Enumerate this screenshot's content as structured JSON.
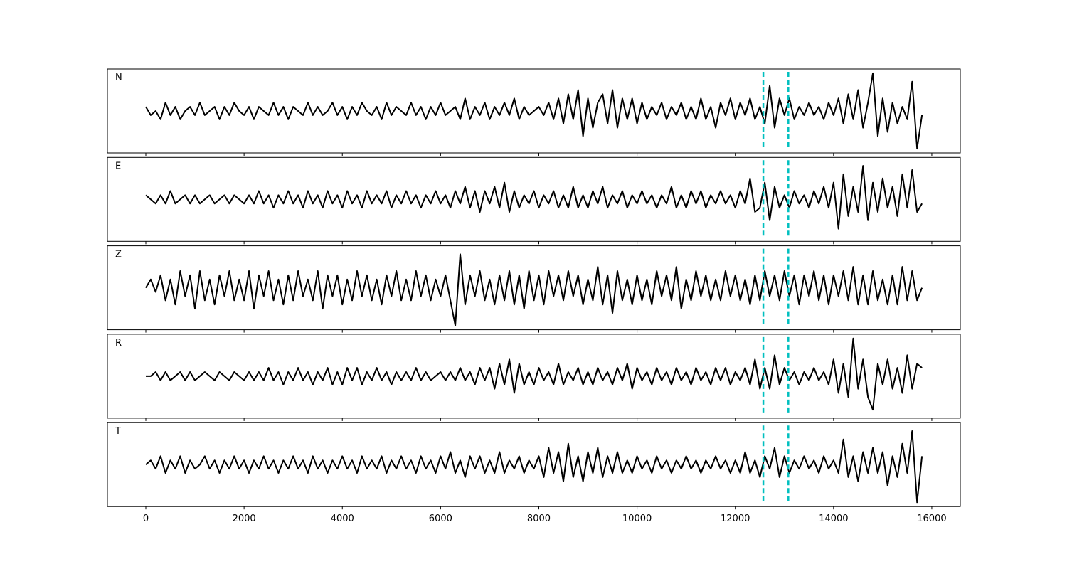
{
  "chart_data": {
    "type": "line",
    "xlim": [
      -782,
      16580
    ],
    "xticks": [
      0,
      2000,
      4000,
      6000,
      8000,
      10000,
      12000,
      14000,
      16000
    ],
    "ylim": [
      -10,
      10
    ],
    "vlines": [
      12570,
      13080
    ],
    "vline_color": "#00bfbf",
    "x": [
      0,
      100,
      200,
      300,
      400,
      500,
      600,
      700,
      800,
      900,
      1000,
      1100,
      1200,
      1300,
      1400,
      1500,
      1600,
      1700,
      1800,
      1900,
      2000,
      2100,
      2200,
      2300,
      2400,
      2500,
      2600,
      2700,
      2800,
      2900,
      3000,
      3100,
      3200,
      3300,
      3400,
      3500,
      3600,
      3700,
      3800,
      3900,
      4000,
      4100,
      4200,
      4300,
      4400,
      4500,
      4600,
      4700,
      4800,
      4900,
      5000,
      5100,
      5200,
      5300,
      5400,
      5500,
      5600,
      5700,
      5800,
      5900,
      6000,
      6100,
      6200,
      6300,
      6400,
      6500,
      6600,
      6700,
      6800,
      6900,
      7000,
      7100,
      7200,
      7300,
      7400,
      7500,
      7600,
      7700,
      7800,
      7900,
      8000,
      8100,
      8200,
      8300,
      8400,
      8500,
      8600,
      8700,
      8800,
      8900,
      9000,
      9100,
      9200,
      9300,
      9400,
      9500,
      9600,
      9700,
      9800,
      9900,
      10000,
      10100,
      10200,
      10300,
      10400,
      10500,
      10600,
      10700,
      10800,
      10900,
      11000,
      11100,
      11200,
      11300,
      11400,
      11500,
      11600,
      11700,
      11800,
      11900,
      12000,
      12100,
      12200,
      12300,
      12400,
      12500,
      12600,
      12700,
      12800,
      12900,
      13000,
      13100,
      13200,
      13300,
      13400,
      13500,
      13600,
      13700,
      13800,
      13900,
      14000,
      14100,
      14200,
      14300,
      14400,
      14500,
      14600,
      14700,
      14800,
      14900,
      15000,
      15100,
      15200,
      15300,
      15400,
      15500,
      15600,
      15700,
      15800
    ],
    "series": [
      {
        "name": "N",
        "color": "#000000",
        "values": [
          1,
          -1,
          0,
          -2,
          2,
          -1,
          1,
          -2,
          0,
          1,
          -1,
          2,
          -1,
          0,
          1,
          -2,
          1,
          -1,
          2,
          0,
          -1,
          1,
          -2,
          1,
          0,
          -1,
          2,
          -1,
          1,
          -2,
          1,
          0,
          -1,
          2,
          -1,
          1,
          -1,
          0,
          2,
          -1,
          1,
          -2,
          1,
          -1,
          2,
          0,
          -1,
          1,
          -2,
          2,
          -1,
          1,
          0,
          -1,
          2,
          -1,
          1,
          -2,
          1,
          -1,
          2,
          -1,
          0,
          1,
          -2,
          3,
          -2,
          1,
          -1,
          2,
          -2,
          1,
          -1,
          2,
          -1,
          3,
          -2,
          1,
          -1,
          0,
          1,
          -1,
          2,
          -2,
          3,
          -3,
          4,
          -2,
          5,
          -6,
          3,
          -4,
          2,
          4,
          -3,
          5,
          -4,
          3,
          -2,
          3,
          -3,
          2,
          -2,
          1,
          -1,
          2,
          -2,
          1,
          -1,
          2,
          -2,
          1,
          -2,
          3,
          -2,
          1,
          -4,
          2,
          -1,
          3,
          -2,
          2,
          -1,
          3,
          -2,
          1,
          -3,
          6,
          -4,
          3,
          -1,
          3,
          -2,
          1,
          -1,
          2,
          -1,
          1,
          -2,
          2,
          -1,
          3,
          -3,
          4,
          -2,
          5,
          -4,
          2,
          9,
          -6,
          3,
          -5,
          2,
          -3,
          1,
          -2,
          7,
          -9,
          -1
        ]
      },
      {
        "name": "E",
        "color": "#000000",
        "values": [
          1,
          0,
          -1,
          1,
          -1,
          2,
          -1,
          0,
          1,
          -1,
          1,
          -1,
          0,
          1,
          -1,
          0,
          1,
          -1,
          1,
          0,
          -1,
          1,
          -1,
          2,
          -1,
          1,
          -2,
          1,
          -1,
          2,
          -1,
          1,
          -2,
          2,
          -1,
          1,
          -2,
          2,
          -1,
          1,
          -2,
          2,
          -1,
          1,
          -2,
          2,
          -1,
          1,
          -1,
          2,
          -2,
          1,
          -1,
          2,
          -1,
          1,
          -2,
          1,
          -1,
          2,
          -1,
          1,
          -2,
          2,
          -1,
          3,
          -2,
          2,
          -3,
          2,
          -1,
          3,
          -2,
          4,
          -3,
          2,
          -2,
          1,
          -1,
          2,
          -2,
          1,
          -1,
          2,
          -2,
          1,
          -2,
          3,
          -2,
          1,
          -2,
          2,
          -1,
          3,
          -2,
          1,
          -1,
          2,
          -2,
          1,
          -1,
          2,
          -1,
          1,
          -2,
          1,
          -1,
          3,
          -2,
          1,
          -2,
          2,
          -1,
          2,
          -2,
          1,
          -1,
          2,
          -1,
          1,
          -2,
          2,
          -1,
          5,
          -3,
          -2,
          4,
          -5,
          3,
          -2,
          1,
          -2,
          2,
          -1,
          1,
          -2,
          2,
          -1,
          3,
          -2,
          4,
          -7,
          6,
          -4,
          3,
          -3,
          8,
          -5,
          4,
          -3,
          5,
          -2,
          3,
          -4,
          6,
          -2,
          7,
          -3,
          -1
        ]
      },
      {
        "name": "Z",
        "color": "#000000",
        "values": [
          0,
          2,
          -1,
          3,
          -3,
          2,
          -4,
          4,
          -2,
          3,
          -5,
          4,
          -3,
          2,
          -4,
          3,
          -2,
          4,
          -3,
          2,
          -3,
          4,
          -5,
          3,
          -2,
          4,
          -3,
          2,
          -4,
          3,
          -3,
          4,
          -2,
          2,
          -3,
          4,
          -5,
          3,
          -2,
          3,
          -4,
          2,
          -3,
          4,
          -2,
          3,
          -3,
          2,
          -4,
          3,
          -2,
          4,
          -3,
          2,
          -3,
          4,
          -2,
          3,
          -3,
          2,
          -2,
          3,
          -3,
          -9,
          8,
          -4,
          3,
          -2,
          4,
          -3,
          2,
          -4,
          3,
          -3,
          4,
          -4,
          3,
          -5,
          4,
          -3,
          3,
          -4,
          4,
          -2,
          3,
          -3,
          4,
          -2,
          3,
          -4,
          2,
          -3,
          5,
          -4,
          3,
          -6,
          4,
          -3,
          2,
          -4,
          3,
          -3,
          2,
          -4,
          4,
          -2,
          3,
          -3,
          5,
          -5,
          2,
          -3,
          4,
          -2,
          3,
          -3,
          2,
          -3,
          4,
          -2,
          3,
          -3,
          2,
          -4,
          3,
          -3,
          4,
          -2,
          3,
          -3,
          4,
          -2,
          3,
          -4,
          3,
          -2,
          4,
          -3,
          3,
          -4,
          3,
          -2,
          4,
          -3,
          5,
          -4,
          3,
          -4,
          4,
          -3,
          2,
          -4,
          3,
          -4,
          5,
          -3,
          4,
          -3,
          0
        ]
      },
      {
        "name": "R",
        "color": "#000000",
        "values": [
          0,
          0,
          1,
          -1,
          1,
          -1,
          0,
          1,
          -1,
          1,
          -1,
          0,
          1,
          0,
          -1,
          1,
          0,
          -1,
          1,
          0,
          -1,
          1,
          -1,
          1,
          -1,
          2,
          -1,
          1,
          -2,
          1,
          -1,
          2,
          -1,
          1,
          -2,
          1,
          -1,
          2,
          -2,
          1,
          -2,
          2,
          -1,
          2,
          -2,
          1,
          -1,
          2,
          -1,
          1,
          -2,
          1,
          -1,
          1,
          -1,
          2,
          -1,
          1,
          -1,
          0,
          1,
          -1,
          1,
          -1,
          2,
          -1,
          1,
          -2,
          2,
          -1,
          2,
          -3,
          3,
          -2,
          4,
          -4,
          3,
          -2,
          1,
          -2,
          2,
          -1,
          1,
          -2,
          3,
          -2,
          1,
          -1,
          2,
          -2,
          1,
          -2,
          2,
          -1,
          1,
          -2,
          2,
          -1,
          3,
          -3,
          2,
          -1,
          1,
          -2,
          2,
          -1,
          1,
          -2,
          2,
          -1,
          1,
          -2,
          2,
          -1,
          1,
          -2,
          2,
          -1,
          2,
          -2,
          1,
          -1,
          2,
          -2,
          4,
          -3,
          2,
          -3,
          5,
          -2,
          2,
          -1,
          1,
          -2,
          1,
          -1,
          2,
          -1,
          1,
          -2,
          4,
          -4,
          3,
          -5,
          9,
          -3,
          4,
          -5,
          -8,
          3,
          -2,
          4,
          -3,
          2,
          -4,
          5,
          -3,
          3,
          2
        ]
      },
      {
        "name": "T",
        "color": "#000000",
        "values": [
          0,
          1,
          -1,
          2,
          -2,
          1,
          -1,
          2,
          -2,
          1,
          -1,
          0,
          2,
          -1,
          1,
          -2,
          1,
          -1,
          2,
          -1,
          1,
          -2,
          1,
          -1,
          2,
          -1,
          1,
          -2,
          1,
          -1,
          2,
          -1,
          1,
          -2,
          2,
          -1,
          1,
          -2,
          1,
          -1,
          2,
          -1,
          1,
          -2,
          2,
          -1,
          1,
          -1,
          2,
          -2,
          1,
          -1,
          2,
          -1,
          1,
          -2,
          2,
          -1,
          1,
          -2,
          2,
          -1,
          3,
          -2,
          1,
          -3,
          2,
          -1,
          2,
          -2,
          1,
          -2,
          3,
          -2,
          1,
          -1,
          2,
          -2,
          1,
          -1,
          2,
          -3,
          4,
          -2,
          3,
          -4,
          5,
          -3,
          2,
          -4,
          3,
          -2,
          4,
          -3,
          2,
          -2,
          3,
          -2,
          1,
          -2,
          2,
          -1,
          1,
          -2,
          2,
          -1,
          1,
          -2,
          1,
          -1,
          2,
          -1,
          1,
          -2,
          1,
          -1,
          2,
          -1,
          1,
          -2,
          1,
          -2,
          3,
          -2,
          1,
          -3,
          2,
          -1,
          4,
          -3,
          2,
          -2,
          1,
          -1,
          2,
          -1,
          1,
          -2,
          2,
          -1,
          1,
          -2,
          6,
          -3,
          2,
          -4,
          3,
          -2,
          4,
          -2,
          3,
          -5,
          2,
          -3,
          5,
          -2,
          8,
          -9,
          2
        ]
      }
    ]
  }
}
